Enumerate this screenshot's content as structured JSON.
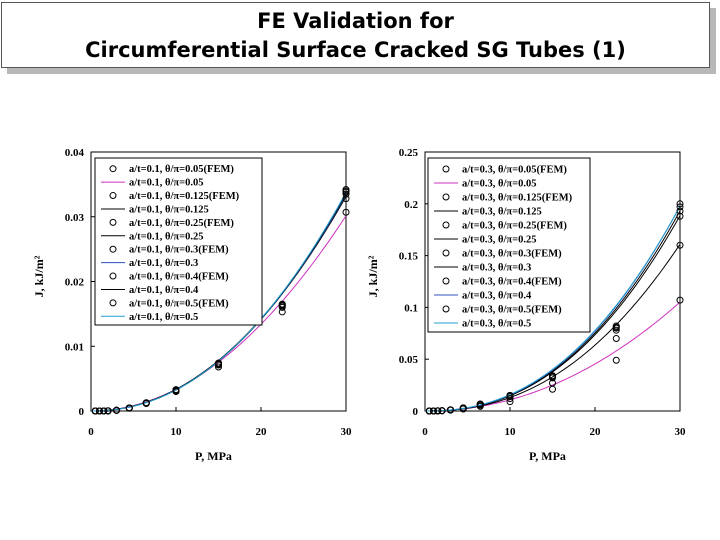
{
  "slide": {
    "title_line1": "FE Validation for",
    "title_line2": "Circumferential Surface Cracked SG Tubes (1)"
  },
  "chart_data": [
    {
      "type": "line",
      "xlabel": "P, MPa",
      "ylabel": "J, kJ/m²",
      "xlim": [
        0,
        30
      ],
      "ylim": [
        0,
        0.04
      ],
      "xticks": [
        "0",
        "10",
        "20",
        "30"
      ],
      "yticks": [
        "0",
        "0.01",
        "0.02",
        "0.03",
        "0.04"
      ],
      "grid": false,
      "legend_position": "top-left",
      "fem_x": [
        0.5,
        1,
        1.5,
        2,
        3,
        4.5,
        6.5,
        10,
        15,
        22.5,
        30
      ],
      "series": [
        {
          "name": "a/t=0.1, θ/π=0.05(FEM)",
          "kind": "markers",
          "values": [
            0,
            0,
            1e-05,
            2e-05,
            0.0001,
            0.00043,
            0.00115,
            0.003,
            0.0068,
            0.0153,
            0.0307
          ],
          "color": "#000000"
        },
        {
          "name": "a/t=0.1, θ/π=0.05",
          "kind": "curve",
          "coef": 3.35e-05,
          "exp": 2.0,
          "color": "#d030c0"
        },
        {
          "name": "a/t=0.1, θ/π=0.125(FEM)",
          "kind": "markers",
          "values": [
            0,
            0,
            1e-05,
            2e-05,
            0.00011,
            0.00046,
            0.00122,
            0.0031,
            0.0071,
            0.016,
            0.0328
          ],
          "color": "#000000"
        },
        {
          "name": "a/t=0.1, θ/π=0.125",
          "kind": "curve",
          "coef": 2.72e-05,
          "exp": 2.09,
          "color": "#000000"
        },
        {
          "name": "a/t=0.1, θ/π=0.25(FEM)",
          "kind": "markers",
          "values": [
            0,
            0,
            1e-05,
            2e-05,
            0.00011,
            0.00047,
            0.00124,
            0.0032,
            0.0072,
            0.0162,
            0.0335
          ],
          "color": "#000000"
        },
        {
          "name": "a/t=0.1, θ/π=0.25",
          "kind": "curve",
          "coef": 2.62e-05,
          "exp": 2.1,
          "color": "#000000"
        },
        {
          "name": "a/t=0.1, θ/π=0.3(FEM)",
          "kind": "markers",
          "values": [
            0,
            0,
            1e-05,
            2e-05,
            0.00011,
            0.00047,
            0.00125,
            0.0032,
            0.0073,
            0.0163,
            0.0338
          ],
          "color": "#000000"
        },
        {
          "name": "a/t=0.1, θ/π=0.3",
          "kind": "curve",
          "coef": 2.51e-05,
          "exp": 2.115,
          "color": "#3050c0"
        },
        {
          "name": "a/t=0.1, θ/π=0.4(FEM)",
          "kind": "markers",
          "values": [
            0,
            0,
            1e-05,
            2e-05,
            0.00011,
            0.00048,
            0.00126,
            0.0032,
            0.0074,
            0.0164,
            0.034
          ],
          "color": "#000000"
        },
        {
          "name": "a/t=0.1, θ/π=0.4",
          "kind": "curve",
          "coef": 2.44e-05,
          "exp": 2.125,
          "color": "#000000"
        },
        {
          "name": "a/t=0.1, θ/π=0.5(FEM)",
          "kind": "markers",
          "values": [
            0,
            0,
            1e-05,
            2e-05,
            0.00011,
            0.00048,
            0.00127,
            0.0033,
            0.0074,
            0.0165,
            0.0342
          ],
          "color": "#000000"
        },
        {
          "name": "a/t=0.1, θ/π=0.5",
          "kind": "curve",
          "coef": 2.41e-05,
          "exp": 2.13,
          "color": "#20a0d0"
        }
      ]
    },
    {
      "type": "line",
      "xlabel": "P, MPa",
      "ylabel": "J, kJ/m²",
      "xlim": [
        0,
        30
      ],
      "ylim": [
        0,
        0.25
      ],
      "xticks": [
        "0",
        "10",
        "20",
        "30"
      ],
      "yticks": [
        "0",
        "0.05",
        "0.1",
        "0.15",
        "0.2",
        "0.25"
      ],
      "grid": false,
      "legend_position": "top-left",
      "fem_x": [
        0.5,
        1,
        1.5,
        2,
        3,
        4.5,
        6.5,
        10,
        15,
        22.5,
        30
      ],
      "series": [
        {
          "name": "a/t=0.3, θ/π=0.05(FEM)",
          "kind": "markers",
          "values": [
            0,
            0,
            0.0001,
            0.0002,
            0.0008,
            0.0019,
            0.0045,
            0.009,
            0.021,
            0.049,
            0.107
          ],
          "color": "#000000"
        },
        {
          "name": "a/t=0.3, θ/π=0.05",
          "kind": "curve",
          "coef": 9.2e-05,
          "exp": 2.07,
          "color": "#d030c0"
        },
        {
          "name": "a/t=0.3, θ/π=0.125(FEM)",
          "kind": "markers",
          "values": [
            0,
            0,
            0.0001,
            0.0003,
            0.001,
            0.0025,
            0.0055,
            0.012,
            0.027,
            0.07,
            0.16
          ],
          "color": "#000000"
        },
        {
          "name": "a/t=0.3, θ/π=0.125",
          "kind": "curve",
          "coef": 6.67e-05,
          "exp": 2.29,
          "color": "#000000"
        },
        {
          "name": "a/t=0.3, θ/π=0.25(FEM)",
          "kind": "markers",
          "values": [
            0,
            0,
            0.0001,
            0.0003,
            0.0011,
            0.0028,
            0.0063,
            0.014,
            0.032,
            0.078,
            0.188
          ],
          "color": "#000000"
        },
        {
          "name": "a/t=0.3, θ/π=0.25",
          "kind": "curve",
          "coef": 7.01e-05,
          "exp": 2.322,
          "color": "#000000"
        },
        {
          "name": "a/t=0.3, θ/π=0.3(FEM)",
          "kind": "markers",
          "values": [
            0,
            0,
            0.0001,
            0.0003,
            0.0011,
            0.0029,
            0.0065,
            0.015,
            0.033,
            0.08,
            0.193
          ],
          "color": "#000000"
        },
        {
          "name": "a/t=0.3, θ/π=0.3",
          "kind": "curve",
          "coef": 7.13e-05,
          "exp": 2.324,
          "color": "#000000"
        },
        {
          "name": "a/t=0.3, θ/π=0.4(FEM)",
          "kind": "markers",
          "values": [
            0,
            0,
            0.0001,
            0.0003,
            0.0011,
            0.0029,
            0.0066,
            0.015,
            0.034,
            0.081,
            0.197
          ],
          "color": "#000000"
        },
        {
          "name": "a/t=0.3, θ/π=0.4",
          "kind": "curve",
          "coef": 7.42e-05,
          "exp": 2.319,
          "color": "#3050c0"
        },
        {
          "name": "a/t=0.3, θ/π=0.5(FEM)",
          "kind": "markers",
          "values": [
            0,
            0,
            0.0001,
            0.0003,
            0.0011,
            0.003,
            0.0067,
            0.015,
            0.034,
            0.082,
            0.2
          ],
          "color": "#000000"
        },
        {
          "name": "a/t=0.3, θ/π=0.5",
          "kind": "curve",
          "coef": 7.92e-05,
          "exp": 2.3,
          "color": "#20a0d0"
        }
      ]
    }
  ]
}
